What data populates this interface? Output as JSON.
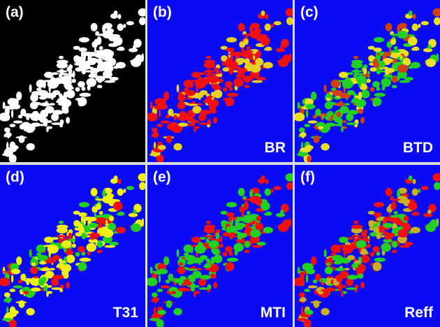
{
  "panels": [
    {
      "label": "(a)"
    },
    {
      "label": "(b)",
      "method": "BR"
    },
    {
      "label": "(c)",
      "method": "BTD"
    },
    {
      "label": "(d)",
      "method": "T31"
    },
    {
      "label": "(e)",
      "method": "MTI"
    },
    {
      "label": "(f)",
      "method": "Reff"
    }
  ]
}
